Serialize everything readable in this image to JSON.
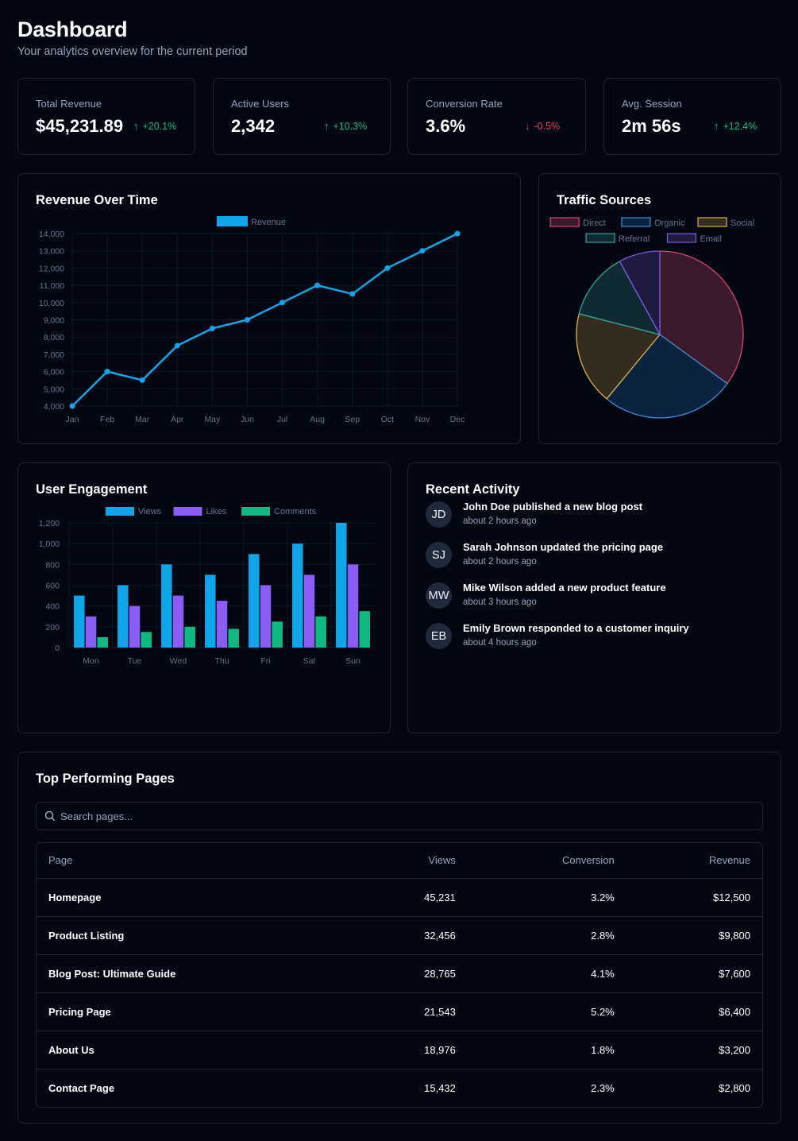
{
  "header": {
    "title": "Dashboard",
    "subtitle": "Your analytics overview for the current period"
  },
  "stats": [
    {
      "label": "Total Revenue",
      "value": "$45,231.89",
      "change": "+20.1%",
      "direction": "up",
      "icon": "arrow-up-icon"
    },
    {
      "label": "Active Users",
      "value": "2,342",
      "change": "+10.3%",
      "direction": "up",
      "icon": "arrow-up-icon"
    },
    {
      "label": "Conversion Rate",
      "value": "3.6%",
      "change": "-0.5%",
      "direction": "down",
      "icon": "arrow-down-icon"
    },
    {
      "label": "Avg. Session",
      "value": "2m 56s",
      "change": "+12.4%",
      "direction": "up",
      "icon": "arrow-up-icon"
    }
  ],
  "colors": {
    "up": "#10b981",
    "down": "#f43f5e",
    "revenue_line": "#0ea5e9",
    "views": "#0ea5e9",
    "likes": "#8b5cf6",
    "comments": "#10b981"
  },
  "revenue_card": {
    "title": "Revenue Over Time"
  },
  "traffic_card": {
    "title": "Traffic Sources"
  },
  "engagement_card": {
    "title": "User Engagement"
  },
  "activity_card": {
    "title": "Recent Activity",
    "items": [
      {
        "initials": "JD",
        "text": "John Doe published a new blog post",
        "time": "about 2 hours ago"
      },
      {
        "initials": "SJ",
        "text": "Sarah Johnson updated the pricing page",
        "time": "about 2 hours ago"
      },
      {
        "initials": "MW",
        "text": "Mike Wilson added a new product feature",
        "time": "about 3 hours ago"
      },
      {
        "initials": "EB",
        "text": "Emily Brown responded to a customer inquiry",
        "time": "about 4 hours ago"
      }
    ]
  },
  "pages_card": {
    "title": "Top Performing Pages",
    "search_placeholder": "Search pages...",
    "search_value": "",
    "search_icon": "search-icon",
    "columns": [
      "Page",
      "Views",
      "Conversion",
      "Revenue"
    ],
    "rows": [
      [
        "Homepage",
        "45,231",
        "3.2%",
        "$12,500"
      ],
      [
        "Product Listing",
        "32,456",
        "2.8%",
        "$9,800"
      ],
      [
        "Blog Post: Ultimate Guide",
        "28,765",
        "4.1%",
        "$7,600"
      ],
      [
        "Pricing Page",
        "21,543",
        "5.2%",
        "$6,400"
      ],
      [
        "About Us",
        "18,976",
        "1.8%",
        "$3,200"
      ],
      [
        "Contact Page",
        "15,432",
        "2.3%",
        "$2,800"
      ]
    ]
  },
  "chart_data": [
    {
      "id": "revenue",
      "type": "line",
      "title": "Revenue Over Time",
      "categories": [
        "Jan",
        "Feb",
        "Mar",
        "Apr",
        "May",
        "Jun",
        "Jul",
        "Aug",
        "Sep",
        "Oct",
        "Nov",
        "Dec"
      ],
      "series": [
        {
          "name": "Revenue",
          "values": [
            4000,
            6000,
            5500,
            7500,
            8500,
            9000,
            10000,
            11000,
            10500,
            12000,
            13000,
            14000
          ],
          "color": "#0ea5e9"
        }
      ],
      "ylim": [
        4000,
        14000
      ],
      "yticks": [
        4000,
        5000,
        6000,
        7000,
        8000,
        9000,
        10000,
        11000,
        12000,
        13000,
        14000
      ],
      "ytick_labels": [
        "4,000",
        "5,000",
        "6,000",
        "7,000",
        "8,000",
        "9,000",
        "10,000",
        "11,000",
        "12,000",
        "13,000",
        "14,000"
      ],
      "legend": "top",
      "grid": true
    },
    {
      "id": "traffic",
      "type": "pie",
      "title": "Traffic Sources",
      "labels": [
        "Direct",
        "Organic",
        "Social",
        "Referral",
        "Email"
      ],
      "values": [
        35,
        26,
        18,
        13,
        8
      ],
      "fill_colors": [
        "#3a1a2c",
        "#0c2340",
        "#352c20",
        "#0f2a33",
        "#1f1a42"
      ],
      "stroke_colors": [
        "#e0436e",
        "#3b8fd6",
        "#e0b043",
        "#2fa5a0",
        "#7c5ce0"
      ],
      "legend": "top"
    },
    {
      "id": "engagement",
      "type": "bar",
      "title": "User Engagement",
      "categories": [
        "Mon",
        "Tue",
        "Wed",
        "Thu",
        "Fri",
        "Sat",
        "Sun"
      ],
      "series": [
        {
          "name": "Views",
          "values": [
            500,
            600,
            800,
            700,
            900,
            1000,
            1200
          ],
          "color": "#0ea5e9"
        },
        {
          "name": "Likes",
          "values": [
            300,
            400,
            500,
            450,
            600,
            700,
            800
          ],
          "color": "#8b5cf6"
        },
        {
          "name": "Comments",
          "values": [
            100,
            150,
            200,
            180,
            250,
            300,
            350
          ],
          "color": "#10b981"
        }
      ],
      "ylim": [
        0,
        1200
      ],
      "yticks": [
        0,
        200,
        400,
        600,
        800,
        1000,
        1200
      ],
      "ytick_labels": [
        "0",
        "200",
        "400",
        "600",
        "800",
        "1,000",
        "1,200"
      ],
      "legend": "top",
      "grid": true
    }
  ]
}
